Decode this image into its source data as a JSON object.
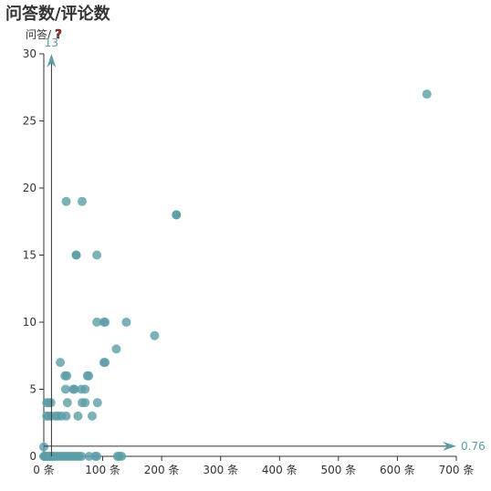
{
  "chart_data": {
    "type": "scatter",
    "title": "问答数/评论数",
    "xlabel": "",
    "ylabel": "问答/",
    "ylabel_icon": "question-mark-icon",
    "x_unit": "条",
    "xlim": [
      0,
      700
    ],
    "ylim": [
      0,
      30
    ],
    "x_ticks": [
      "0 条",
      "100 条",
      "200 条",
      "300 条",
      "400 条",
      "500 条",
      "600 条",
      "700 条"
    ],
    "y_ticks": [
      "0",
      "5",
      "10",
      "15",
      "20",
      "25",
      "30"
    ],
    "grid": false,
    "point_color": "#5b9ea6",
    "mean_lines": {
      "x_mean": 13,
      "x_mean_label": "13",
      "y_mean": 0.76,
      "y_mean_label": "0.76"
    },
    "points": [
      [
        650,
        27
      ],
      [
        225,
        18
      ],
      [
        225,
        18
      ],
      [
        38,
        19
      ],
      [
        65,
        19
      ],
      [
        55,
        15
      ],
      [
        55,
        15
      ],
      [
        90,
        15
      ],
      [
        90,
        10
      ],
      [
        102,
        10
      ],
      [
        104,
        10
      ],
      [
        140,
        10
      ],
      [
        188,
        9
      ],
      [
        123,
        8
      ],
      [
        28,
        7
      ],
      [
        102,
        7
      ],
      [
        104,
        7
      ],
      [
        36,
        6
      ],
      [
        39,
        6
      ],
      [
        74,
        6
      ],
      [
        76,
        6
      ],
      [
        37,
        5
      ],
      [
        50,
        5
      ],
      [
        52,
        5
      ],
      [
        64,
        5
      ],
      [
        70,
        5
      ],
      [
        5,
        4
      ],
      [
        8,
        4
      ],
      [
        12,
        4
      ],
      [
        40,
        4
      ],
      [
        65,
        4
      ],
      [
        70,
        4
      ],
      [
        91,
        4
      ],
      [
        5,
        3
      ],
      [
        8,
        3
      ],
      [
        12,
        3
      ],
      [
        20,
        3
      ],
      [
        24,
        3
      ],
      [
        30,
        3
      ],
      [
        38,
        3
      ],
      [
        58,
        3
      ],
      [
        82,
        3
      ],
      [
        0,
        0.7
      ],
      [
        0,
        0
      ],
      [
        2,
        0
      ],
      [
        4,
        0
      ],
      [
        6,
        0
      ],
      [
        8,
        0
      ],
      [
        10,
        0
      ],
      [
        12,
        0
      ],
      [
        14,
        0
      ],
      [
        16,
        0
      ],
      [
        20,
        0
      ],
      [
        24,
        0
      ],
      [
        28,
        0
      ],
      [
        32,
        0
      ],
      [
        36,
        0
      ],
      [
        40,
        0
      ],
      [
        44,
        0
      ],
      [
        48,
        0
      ],
      [
        52,
        0
      ],
      [
        56,
        0
      ],
      [
        60,
        0
      ],
      [
        64,
        0
      ],
      [
        77,
        0
      ],
      [
        87,
        0
      ],
      [
        90,
        0
      ],
      [
        125,
        0
      ],
      [
        128,
        0
      ],
      [
        132,
        0
      ]
    ]
  }
}
